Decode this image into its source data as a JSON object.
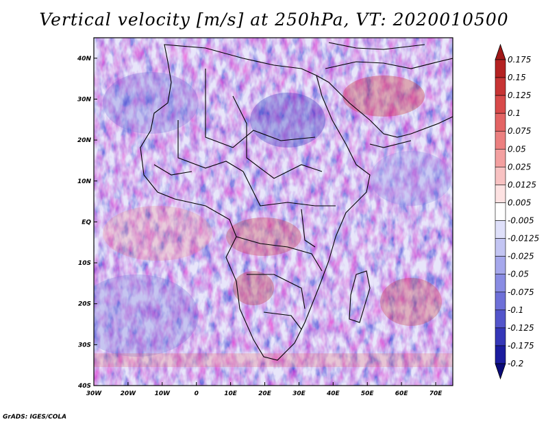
{
  "title": "Vertical velocity [m/s] at 250hPa, VT: 2020010500",
  "footer": "GrADS: IGES/COLA",
  "map": {
    "lon_ticks": [
      "30W",
      "20W",
      "10W",
      "0",
      "10E",
      "20E",
      "30E",
      "40E",
      "50E",
      "60E",
      "70E"
    ],
    "lat_ticks": [
      "40N",
      "30N",
      "20N",
      "10N",
      "EQ",
      "10S",
      "20S",
      "30S",
      "40S"
    ],
    "lon_range": [
      -30,
      75
    ],
    "lat_range": [
      -40,
      45
    ]
  },
  "colorbar": {
    "labels": [
      "0.175",
      "0.15",
      "0.125",
      "0.1",
      "0.075",
      "0.05",
      "0.025",
      "0.0125",
      "0.005",
      "-0.005",
      "-0.0125",
      "-0.025",
      "-0.05",
      "-0.075",
      "-0.1",
      "-0.125",
      "-0.175",
      "-0.2"
    ],
    "colors": [
      "#a01818",
      "#b42222",
      "#c73434",
      "#d84a4a",
      "#e36464",
      "#ec8080",
      "#f3a0a0",
      "#f8c2c2",
      "#fde2e2",
      "#ffffff",
      "#dfe0fa",
      "#c3c5f3",
      "#a6a8ec",
      "#898ce3",
      "#6e70d8",
      "#5355cb",
      "#3537b8",
      "#1b1c9e",
      "#0a0a78"
    ]
  }
}
